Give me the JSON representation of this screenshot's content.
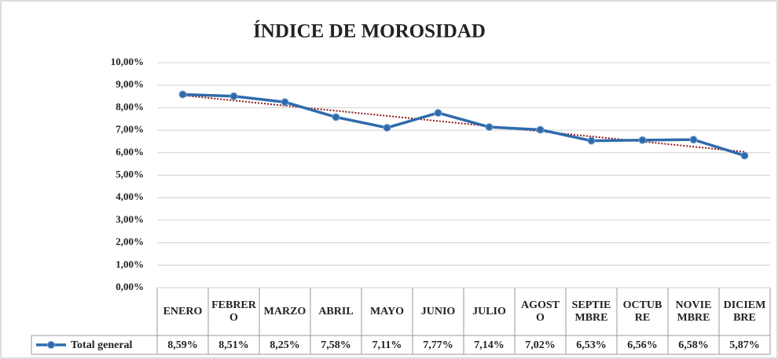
{
  "chart_data": {
    "type": "line",
    "title": "ÍNDICE DE MOROSIDAD",
    "categories": [
      "ENERO",
      "FEBRERO",
      "MARZO",
      "ABRIL",
      "MAYO",
      "JUNIO",
      "JULIO",
      "AGOSTO",
      "SEPTIEMBRE",
      "OCTUBRE",
      "NOVIEMBRE",
      "DICIEMBRE"
    ],
    "series": [
      {
        "name": "Total general",
        "color": "#2e6bab",
        "values": [
          8.59,
          8.51,
          8.25,
          7.58,
          7.11,
          7.77,
          7.14,
          7.02,
          6.53,
          6.56,
          6.58,
          5.87
        ],
        "value_labels": [
          "8,59%",
          "8,51%",
          "8,25%",
          "7,58%",
          "7,11%",
          "7,77%",
          "7,14%",
          "7,02%",
          "6,53%",
          "6,56%",
          "6,58%",
          "5,87%"
        ]
      }
    ],
    "ylim": [
      0,
      10
    ],
    "yticks": [
      {
        "value": 0,
        "label": "0,00%"
      },
      {
        "value": 1,
        "label": "1,00%"
      },
      {
        "value": 2,
        "label": "2,00%"
      },
      {
        "value": 3,
        "label": "3,00%"
      },
      {
        "value": 4,
        "label": "4,00%"
      },
      {
        "value": 5,
        "label": "5,00%"
      },
      {
        "value": 6,
        "label": "6,00%"
      },
      {
        "value": 7,
        "label": "7,00%"
      },
      {
        "value": 8,
        "label": "8,00%"
      },
      {
        "value": 9,
        "label": "9,00%"
      },
      {
        "value": 10,
        "label": "10,00%"
      }
    ],
    "grid": true,
    "trendline": true,
    "trendline_color": "#8b1a1a"
  }
}
